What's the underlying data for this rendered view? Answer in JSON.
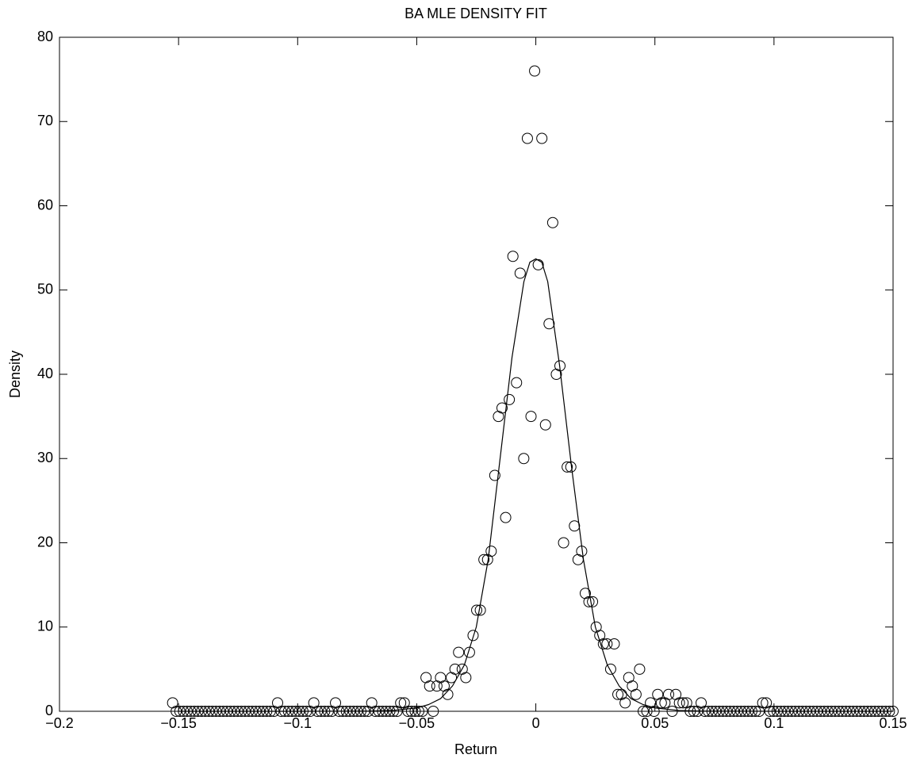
{
  "chart_data": {
    "type": "scatter",
    "title": "BA MLE DENSITY FIT",
    "x_label": "Return",
    "y_label": "Density",
    "xlim": [
      -0.2,
      0.15
    ],
    "ylim": [
      0,
      80
    ],
    "xticks": [
      {
        "value": -0.2,
        "label": "−0.2"
      },
      {
        "value": -0.15,
        "label": "−0.15"
      },
      {
        "value": -0.1,
        "label": "−0.1"
      },
      {
        "value": -0.05,
        "label": "−0.05"
      },
      0,
      0.05,
      0.1,
      0.15
    ],
    "yticks": [
      0,
      10,
      20,
      30,
      40,
      50,
      60,
      70,
      80
    ],
    "grid": false,
    "series": [
      {
        "type": "scatter",
        "marker": "circle",
        "color": "#000000",
        "x": [
          -0.1525,
          -0.15098,
          -0.14946,
          -0.14794,
          -0.14642,
          -0.1449,
          -0.14338,
          -0.14186,
          -0.14034,
          -0.13882,
          -0.1373,
          -0.13578,
          -0.13426,
          -0.13274,
          -0.13122,
          -0.1297,
          -0.12818,
          -0.12666,
          -0.12514,
          -0.12362,
          -0.1221,
          -0.12058,
          -0.11906,
          -0.11754,
          -0.11602,
          -0.1145,
          -0.11298,
          -0.11146,
          -0.10994,
          -0.10842,
          -0.1069,
          -0.10538,
          -0.10386,
          -0.10234,
          -0.10082,
          -0.0993,
          -0.09778,
          -0.09626,
          -0.09474,
          -0.09322,
          -0.0917,
          -0.09018,
          -0.08866,
          -0.08714,
          -0.08562,
          -0.0841,
          -0.08258,
          -0.08106,
          -0.07954,
          -0.07802,
          -0.0765,
          -0.07498,
          -0.07346,
          -0.07194,
          -0.07042,
          -0.0689,
          -0.06738,
          -0.06586,
          -0.06434,
          -0.06282,
          -0.0613,
          -0.05978,
          -0.05826,
          -0.05674,
          -0.05522,
          -0.0537,
          -0.05218,
          -0.05066,
          -0.04914,
          -0.04762,
          -0.0461,
          -0.04458,
          -0.04306,
          -0.04154,
          -0.04002,
          -0.0385,
          -0.03698,
          -0.03546,
          -0.03394,
          -0.03242,
          -0.0309,
          -0.02938,
          -0.02786,
          -0.02634,
          -0.02482,
          -0.0233,
          -0.02178,
          -0.02026,
          -0.01874,
          -0.01722,
          -0.0157,
          -0.01418,
          -0.01266,
          -0.01114,
          -0.00962,
          -0.0081,
          -0.00658,
          -0.00506,
          -0.00354,
          -0.00202,
          -0.0005,
          0.00102,
          0.00254,
          0.00406,
          0.00558,
          0.0071,
          0.00862,
          0.01014,
          0.01166,
          0.01318,
          0.0147,
          0.01622,
          0.01774,
          0.01926,
          0.02078,
          0.0223,
          0.02382,
          0.02534,
          0.02686,
          0.02838,
          0.0299,
          0.03142,
          0.03294,
          0.03446,
          0.03598,
          0.0375,
          0.03902,
          0.04054,
          0.04206,
          0.04358,
          0.0451,
          0.04662,
          0.04814,
          0.04966,
          0.05118,
          0.0527,
          0.05422,
          0.05574,
          0.05726,
          0.05878,
          0.0603,
          0.06182,
          0.06334,
          0.06486,
          0.06638,
          0.0679,
          0.06942,
          0.07094,
          0.07246,
          0.07398,
          0.0755,
          0.07702,
          0.07854,
          0.08006,
          0.08158,
          0.0831,
          0.08462,
          0.08614,
          0.08766,
          0.08918,
          0.0907,
          0.09222,
          0.09374,
          0.09526,
          0.09678,
          0.0983,
          0.09982,
          0.10134,
          0.10286,
          0.10438,
          0.1059,
          0.10742,
          0.10894,
          0.11046,
          0.11198,
          0.1135,
          0.11502,
          0.11654,
          0.11806,
          0.11958,
          0.1211,
          0.12262,
          0.12414,
          0.12566,
          0.12718,
          0.1287,
          0.13022,
          0.13174,
          0.13326,
          0.13478,
          0.1363,
          0.13782,
          0.13934,
          0.14086,
          0.14238,
          0.1439,
          0.14542,
          0.14694,
          0.14846,
          0.14998
        ],
        "values": [
          1,
          0,
          0,
          0,
          0,
          0,
          0,
          0,
          0,
          0,
          0,
          0,
          0,
          0,
          0,
          0,
          0,
          0,
          0,
          0,
          0,
          0,
          0,
          0,
          0,
          0,
          0,
          0,
          0,
          1,
          0,
          0,
          0,
          0,
          0,
          0,
          0,
          0,
          0,
          1,
          0,
          0,
          0,
          0,
          0,
          1,
          0,
          0,
          0,
          0,
          0,
          0,
          0,
          0,
          0,
          1,
          0,
          0,
          0,
          0,
          0,
          0,
          0,
          1,
          1,
          0,
          0,
          0,
          0,
          0,
          4,
          3,
          0,
          3,
          4,
          3,
          2,
          4,
          5,
          7,
          5,
          4,
          7,
          9,
          12,
          12,
          18,
          18,
          19,
          28,
          35,
          36,
          23,
          37,
          54,
          39,
          52,
          30,
          68,
          35,
          76,
          53,
          68,
          34,
          46,
          58,
          40,
          41,
          20,
          29,
          29,
          22,
          18,
          19,
          14,
          13,
          13,
          10,
          9,
          8,
          8,
          5,
          8,
          2,
          2,
          1,
          4,
          3,
          2,
          5,
          0,
          0,
          1,
          0,
          2,
          1,
          1,
          2,
          0,
          2,
          1,
          1,
          1,
          0,
          0,
          0,
          1,
          0,
          0,
          0,
          0,
          0,
          0,
          0,
          0,
          0,
          0,
          0,
          0,
          0,
          0,
          0,
          0,
          1,
          1,
          0,
          0,
          0,
          0,
          0,
          0,
          0,
          0,
          0,
          0,
          0,
          0,
          0,
          0,
          0,
          0,
          0,
          0,
          0,
          0,
          0,
          0,
          0,
          0,
          0,
          0,
          0,
          0,
          0,
          0,
          0,
          0,
          0,
          0,
          0
        ]
      },
      {
        "type": "line",
        "color": "#000000",
        "x": [
          -0.15,
          -0.1,
          -0.07,
          -0.06,
          -0.05,
          -0.045,
          -0.04,
          -0.035,
          -0.03,
          -0.025,
          -0.02,
          -0.015,
          -0.01,
          -0.005,
          -0.0025,
          0,
          0.0025,
          0.005,
          0.01,
          0.015,
          0.02,
          0.025,
          0.03,
          0.035,
          0.04,
          0.045,
          0.05,
          0.06,
          0.07,
          0.1,
          0.15
        ],
        "values": [
          0,
          0,
          0.03,
          0.1,
          0.4,
          0.8,
          1.5,
          3,
          5.5,
          10,
          18,
          30,
          42,
          51,
          53.3,
          53.7,
          53.3,
          51,
          41,
          29,
          18,
          10,
          5.5,
          3,
          1.5,
          0.8,
          0.4,
          0.1,
          0.03,
          0,
          0
        ]
      }
    ]
  }
}
